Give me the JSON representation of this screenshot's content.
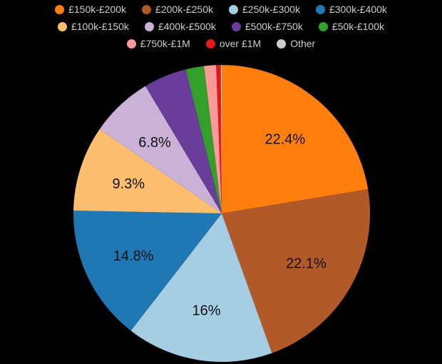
{
  "chart_data": {
    "type": "pie",
    "title": "",
    "categories": [
      "£150k-£200k",
      "£200k-£250k",
      "£250k-£300k",
      "£300k-£400k",
      "£100k-£150k",
      "£400k-£500k",
      "£500k-£750k",
      "£50k-£100k",
      "£750k-£1M",
      "over £1M",
      "Other"
    ],
    "values": [
      22.4,
      22.1,
      16,
      14.8,
      9.3,
      6.8,
      4.7,
      2.0,
      1.3,
      0.5,
      0.1
    ],
    "labels": [
      "22.4%",
      "22.1%",
      "16%",
      "14.8%",
      "9.3%",
      "6.8%",
      "",
      "",
      "",
      "",
      ""
    ],
    "colors": [
      "#ff7f0e",
      "#b15928",
      "#a6cee3",
      "#1f78b4",
      "#fdbf6f",
      "#cab2d6",
      "#6a3d9a",
      "#33a02c",
      "#fb9a99",
      "#e31a1c",
      "#cccccc"
    ],
    "legend_position": "top"
  },
  "legend": {
    "rows": [
      [
        {
          "label": "£150k-£200k",
          "color": "#ff7f0e"
        },
        {
          "label": "£200k-£250k",
          "color": "#b15928"
        },
        {
          "label": "£250k-£300k",
          "color": "#a6cee3"
        },
        {
          "label": "£300k-£400k",
          "color": "#1f78b4"
        }
      ],
      [
        {
          "label": "£100k-£150k",
          "color": "#fdbf6f"
        },
        {
          "label": "£400k-£500k",
          "color": "#cab2d6"
        },
        {
          "label": "£500k-£750k",
          "color": "#6a3d9a"
        },
        {
          "label": "£50k-£100k",
          "color": "#33a02c"
        }
      ],
      [
        {
          "label": "£750k-£1M",
          "color": "#fb9a99"
        },
        {
          "label": "over £1M",
          "color": "#e31a1c"
        },
        {
          "label": "Other",
          "color": "#cccccc"
        }
      ]
    ]
  }
}
